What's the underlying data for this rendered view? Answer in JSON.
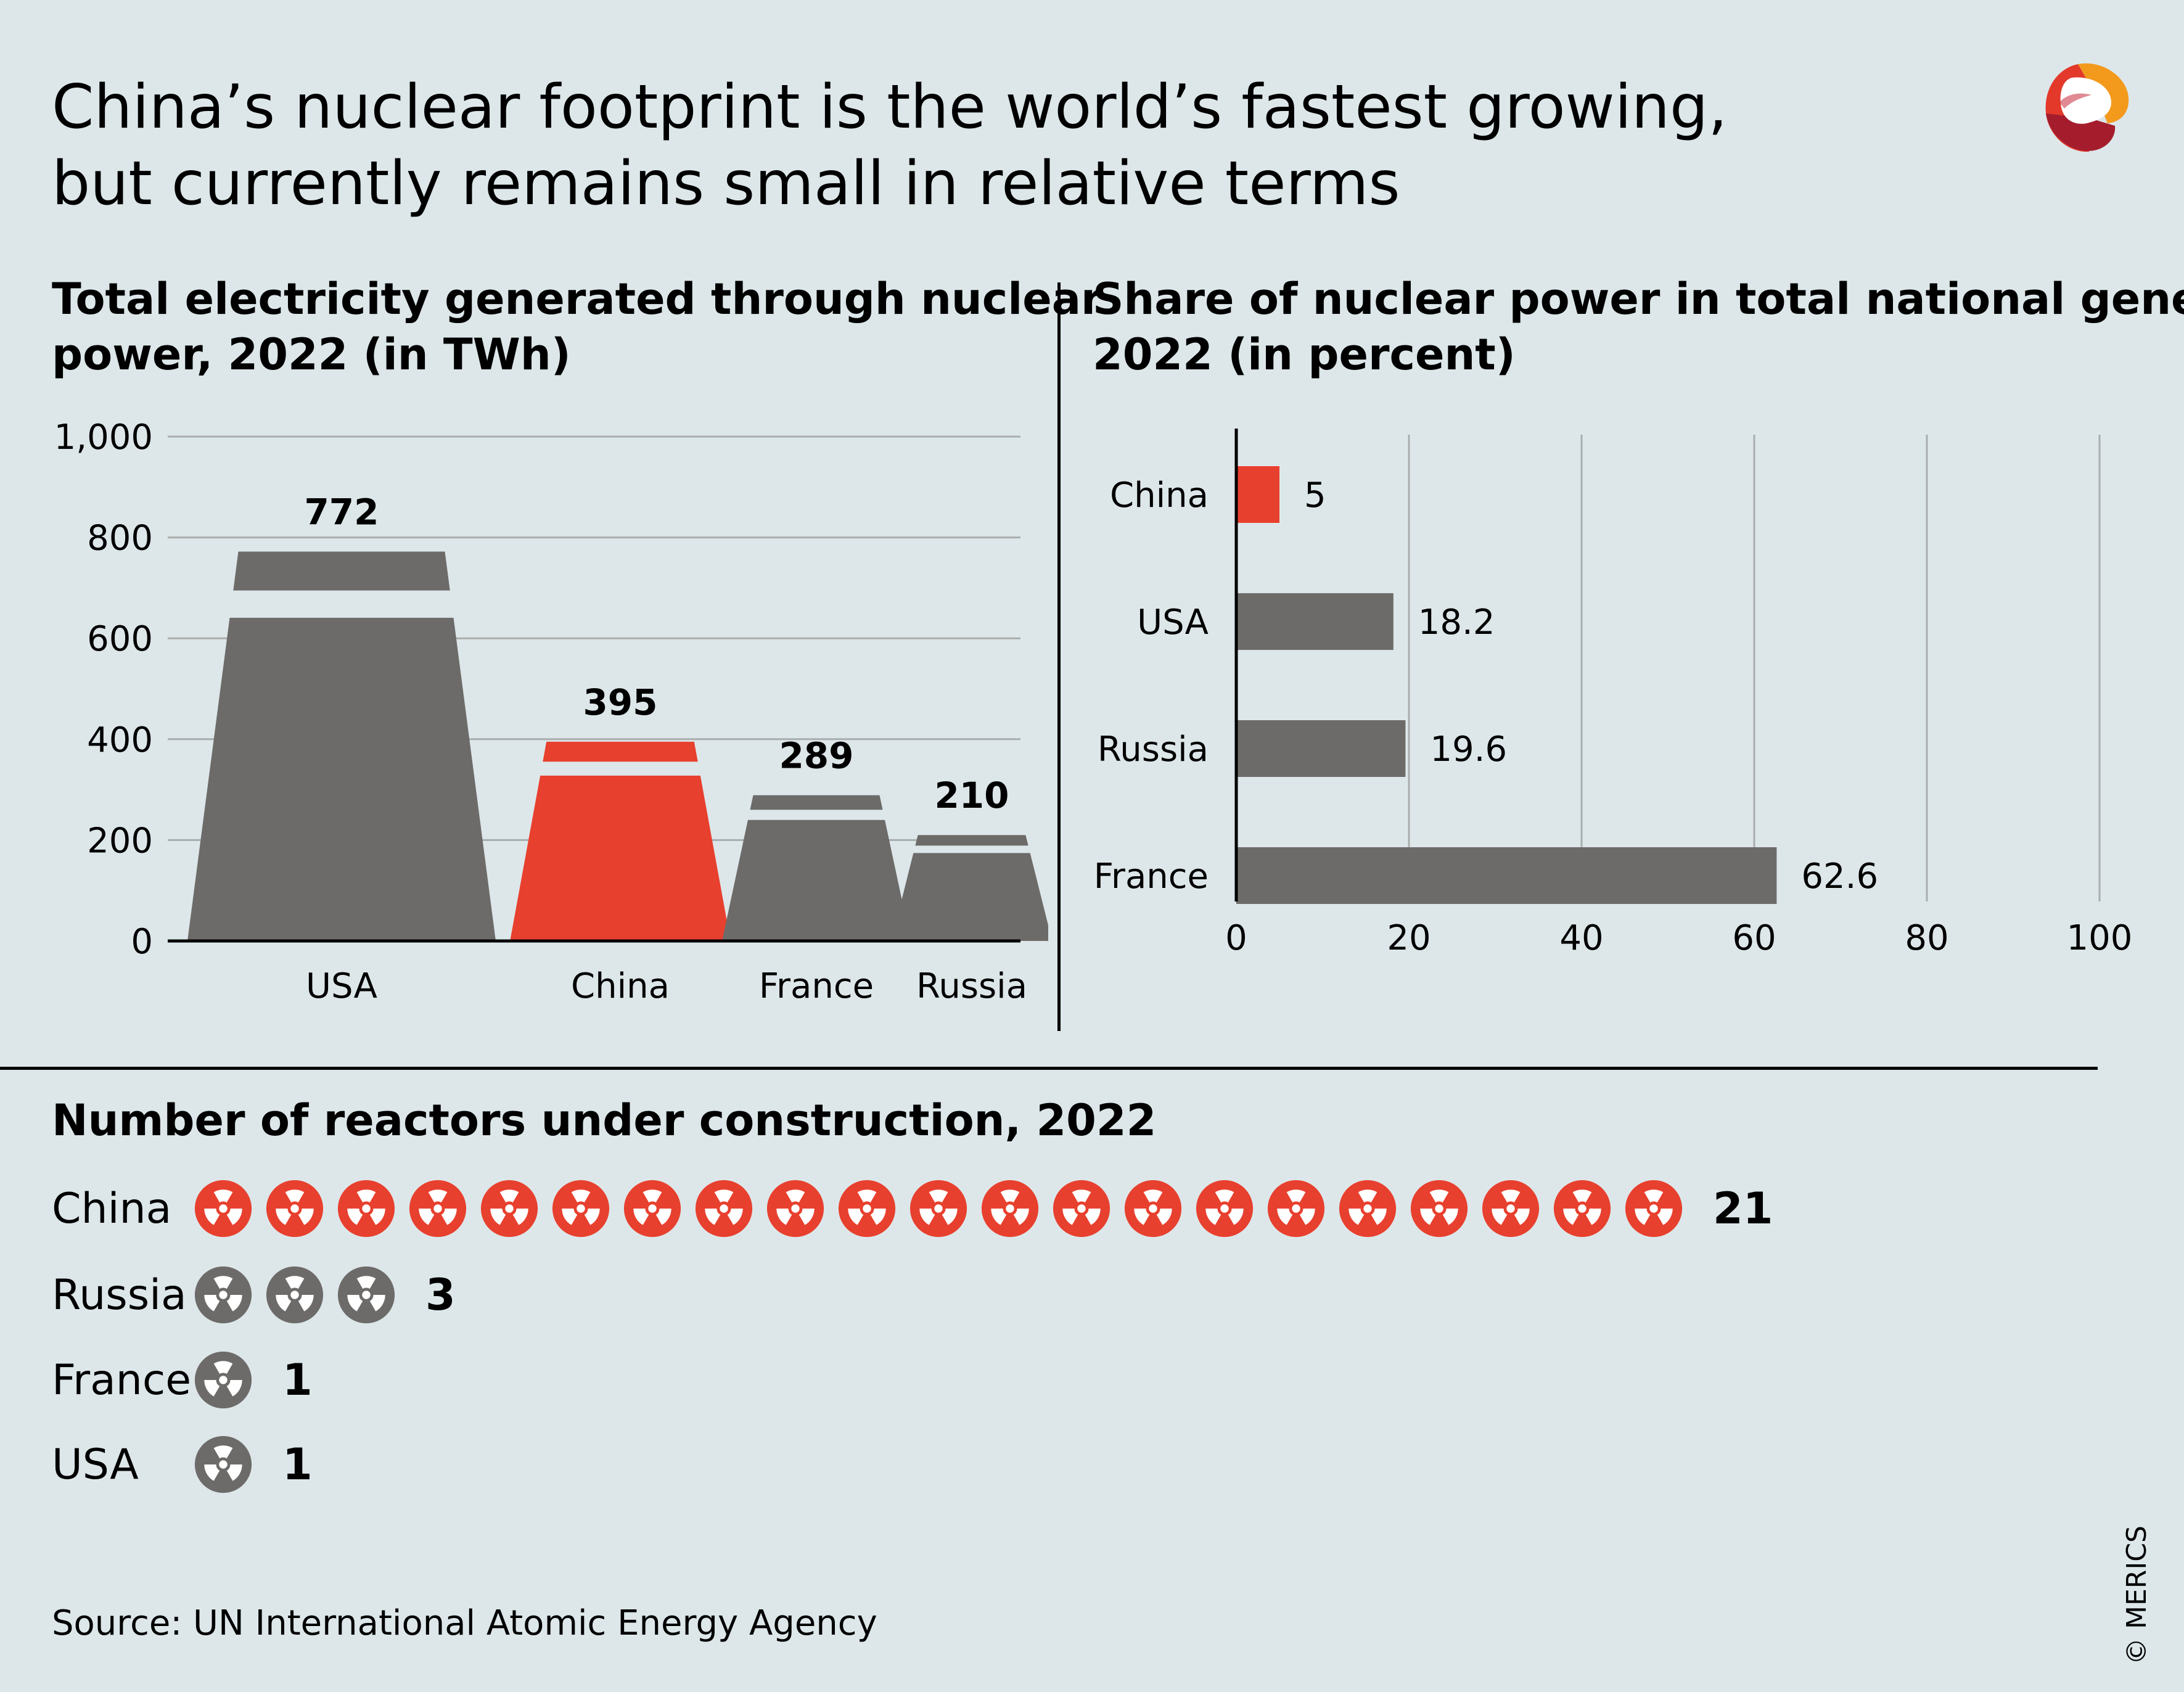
{
  "title_line1": "China’s nuclear footprint is the world’s fastest growing,",
  "title_line2": "but currently remains small in relative terms",
  "colors": {
    "background": "#dde7ea",
    "highlight": "#e8402e",
    "gray": "#6d6b69",
    "grid": "#a9adad",
    "axis": "#000000"
  },
  "chart_data": [
    {
      "type": "bar",
      "title_line1": "Total electricity generated through nuclear",
      "title_line2": "power, 2022 (in TWh)",
      "categories": [
        "USA",
        "China",
        "France",
        "Russia"
      ],
      "values": [
        772,
        395,
        289,
        210
      ],
      "value_labels": [
        "772",
        "395",
        "289",
        "210"
      ],
      "highlight": "China",
      "ylim": [
        0,
        1000
      ],
      "yticks": [
        0,
        200,
        400,
        600,
        800,
        1000
      ],
      "ytick_labels": [
        "0",
        "200",
        "400",
        "600",
        "800",
        "1,000"
      ],
      "grid": true
    },
    {
      "type": "bar",
      "orientation": "horizontal",
      "title_line1": "Share of nuclear power in total national generation,",
      "title_line2": "2022 (in percent)",
      "categories": [
        "China",
        "USA",
        "Russia",
        "France"
      ],
      "values": [
        5,
        18.2,
        19.6,
        62.6
      ],
      "value_labels": [
        "5",
        "18.2",
        "19.6",
        "62.6"
      ],
      "highlight": "China",
      "xlim": [
        0,
        100
      ],
      "xticks": [
        0,
        20,
        40,
        60,
        80,
        100
      ],
      "xtick_labels": [
        "0",
        "20",
        "40",
        "60",
        "80",
        "100"
      ],
      "grid": true
    },
    {
      "type": "pictogram",
      "title": "Number of reactors under construction, 2022",
      "icon": "radiation-icon",
      "rows": [
        {
          "country": "China",
          "count": 21,
          "label": "21",
          "highlight": true
        },
        {
          "country": "Russia",
          "count": 3,
          "label": "3",
          "highlight": false
        },
        {
          "country": "France",
          "count": 1,
          "label": "1",
          "highlight": false
        },
        {
          "country": "USA",
          "count": 1,
          "label": "1",
          "highlight": false
        }
      ]
    }
  ],
  "source": "Source: UN International Atomic Energy Agency",
  "copyright": "© MERICS",
  "logo_icon": "merics-logo-icon"
}
